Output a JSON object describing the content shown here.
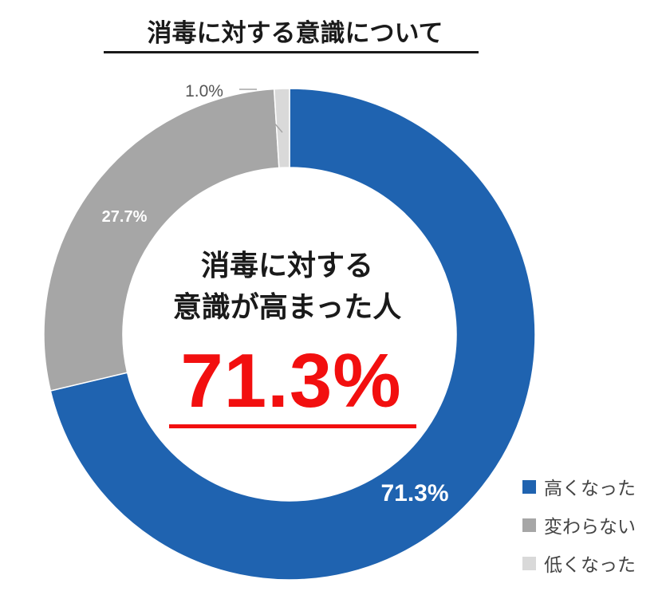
{
  "title": "消毒に対する意識について",
  "center": {
    "line1": "消毒に対する",
    "line2": "意識が高まった人",
    "value": "71.3%"
  },
  "colors": {
    "high": "#1f63b0",
    "same": "#a6a6a6",
    "low": "#d9d9d9",
    "accent": "#f20f0f"
  },
  "chart_data": {
    "type": "donut",
    "title": "消毒に対する意識について",
    "categories": [
      "高くなった",
      "変わらない",
      "低くなった"
    ],
    "values": [
      71.3,
      27.7,
      1.0
    ],
    "labels": [
      "71.3%",
      "27.7%",
      "1.0%"
    ],
    "legend_position": "bottom-right"
  }
}
